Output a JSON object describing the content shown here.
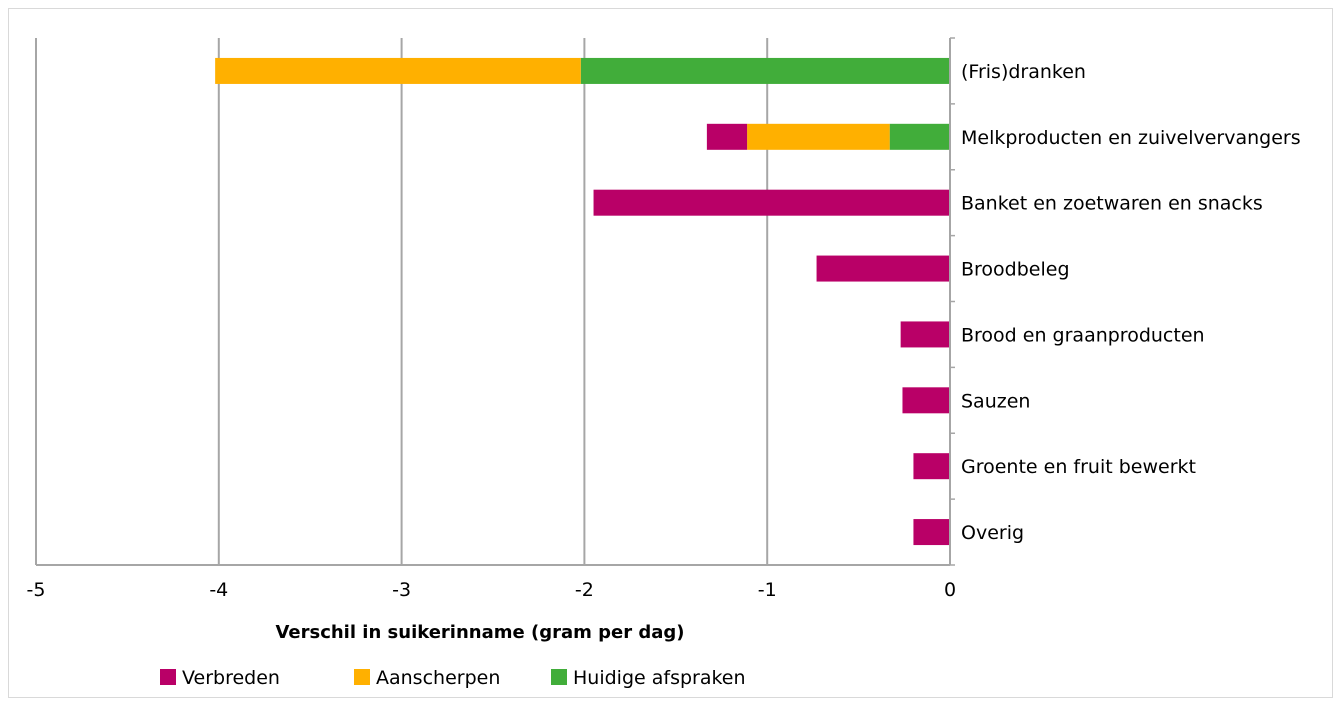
{
  "chart_data": {
    "type": "bar",
    "orientation": "horizontal",
    "stacked": true,
    "categories": [
      "(Fris)dranken",
      "Melkproducten en zuivelvervangers",
      "Banket en zoetwaren en snacks",
      "Broodbeleg",
      "Brood en graanproducten",
      "Sauzen",
      "Groente en fruit bewerkt",
      "Overig"
    ],
    "series": [
      {
        "name": "Huidige afspraken",
        "color": "#41ad3a",
        "values": [
          -2.02,
          -0.33,
          0,
          0,
          0,
          0,
          0,
          0
        ]
      },
      {
        "name": "Aanscherpen",
        "color": "#ffb000",
        "values": [
          -2.0,
          -0.78,
          0,
          0,
          0,
          0,
          0,
          0
        ]
      },
      {
        "name": "Verbreden",
        "color": "#b90067",
        "values": [
          0,
          -0.22,
          -1.95,
          -0.73,
          -0.27,
          -0.26,
          -0.2,
          -0.2
        ]
      }
    ],
    "legend_order": [
      "Verbreden",
      "Aanscherpen",
      "Huidige afspraken"
    ],
    "xlabel": "Verschil in suikerinname (gram per dag)",
    "xlim": [
      -5,
      0
    ],
    "xticks": [
      "-5",
      "-4",
      "-3",
      "-2",
      "-1",
      "0"
    ],
    "grid": "vertical",
    "legend_position": "bottom"
  }
}
